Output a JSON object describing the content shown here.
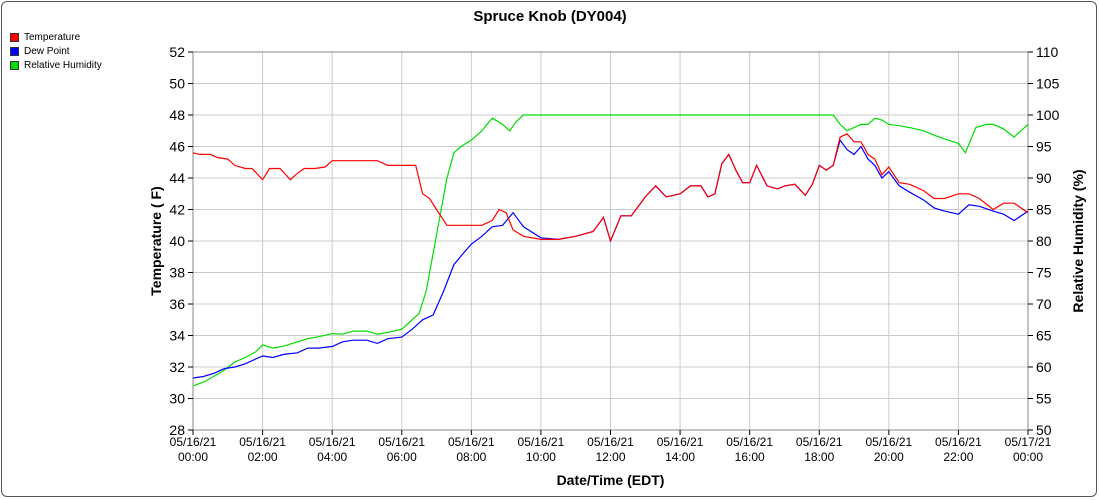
{
  "chart_data": {
    "type": "line",
    "title": "Spruce Knob (DY004)",
    "xlabel": "Date/Time (EDT)",
    "ylabel_left": "Temperature ( F)",
    "ylabel_right": "Relative Humidity (%)",
    "ylim_left": [
      28,
      52
    ],
    "ylim_right": [
      50,
      110
    ],
    "xlim_hours": [
      0,
      24
    ],
    "grid": true,
    "legend_placement": "top-left",
    "x_tick_labels": [
      [
        "05/16/21",
        "00:00"
      ],
      [
        "05/16/21",
        "02:00"
      ],
      [
        "05/16/21",
        "04:00"
      ],
      [
        "05/16/21",
        "06:00"
      ],
      [
        "05/16/21",
        "08:00"
      ],
      [
        "05/16/21",
        "10:00"
      ],
      [
        "05/16/21",
        "12:00"
      ],
      [
        "05/16/21",
        "14:00"
      ],
      [
        "05/16/21",
        "16:00"
      ],
      [
        "05/16/21",
        "18:00"
      ],
      [
        "05/16/21",
        "20:00"
      ],
      [
        "05/16/21",
        "22:00"
      ],
      [
        "05/17/21",
        "00:00"
      ]
    ],
    "y_left_ticks": [
      28,
      30,
      32,
      34,
      36,
      38,
      40,
      42,
      44,
      46,
      48,
      50,
      52
    ],
    "y_right_ticks": [
      50,
      55,
      60,
      65,
      70,
      75,
      80,
      85,
      90,
      95,
      100,
      105,
      110
    ],
    "series": [
      {
        "name": "Temperature",
        "color": "#ff0000",
        "axis": "left",
        "x": [
          0,
          0.2,
          0.5,
          0.7,
          1.0,
          1.2,
          1.5,
          1.7,
          2.0,
          2.2,
          2.5,
          2.8,
          3.0,
          3.2,
          3.5,
          3.8,
          4.0,
          4.3,
          4.6,
          5.0,
          5.3,
          5.6,
          6.0,
          6.4,
          6.6,
          6.8,
          7.0,
          7.3,
          7.6,
          8.0,
          8.3,
          8.6,
          8.8,
          9.0,
          9.2,
          9.5,
          10.0,
          10.5,
          11.0,
          11.5,
          11.8,
          12.0,
          12.3,
          12.6,
          13.0,
          13.3,
          13.6,
          14.0,
          14.3,
          14.6,
          14.8,
          15.0,
          15.2,
          15.4,
          15.6,
          15.8,
          16.0,
          16.2,
          16.5,
          16.8,
          17.0,
          17.3,
          17.6,
          17.8,
          18.0,
          18.2,
          18.4,
          18.6,
          18.8,
          19.0,
          19.2,
          19.4,
          19.6,
          19.8,
          20.0,
          20.3,
          20.6,
          21.0,
          21.3,
          21.6,
          22.0,
          22.3,
          22.6,
          23.0,
          23.3,
          23.6,
          24.0
        ],
        "values": [
          45.6,
          45.5,
          45.5,
          45.3,
          45.2,
          44.8,
          44.6,
          44.6,
          43.9,
          44.6,
          44.6,
          43.9,
          44.3,
          44.6,
          44.6,
          44.7,
          45.1,
          45.1,
          45.1,
          45.1,
          45.1,
          44.8,
          44.8,
          44.8,
          43.0,
          42.7,
          42.0,
          41.0,
          41.0,
          41.0,
          41.0,
          41.3,
          42.0,
          41.8,
          40.7,
          40.3,
          40.1,
          40.1,
          40.3,
          40.6,
          41.5,
          40.0,
          41.6,
          41.6,
          42.8,
          43.5,
          42.8,
          43.0,
          43.5,
          43.5,
          42.8,
          43.0,
          44.9,
          45.5,
          44.5,
          43.7,
          43.7,
          44.8,
          43.5,
          43.3,
          43.5,
          43.6,
          42.9,
          43.6,
          44.8,
          44.5,
          44.8,
          46.6,
          46.8,
          46.3,
          46.3,
          45.5,
          45.2,
          44.2,
          44.7,
          43.7,
          43.6,
          43.2,
          42.7,
          42.7,
          43.0,
          43.0,
          42.7,
          42.0,
          42.4,
          42.4,
          41.8
        ]
      },
      {
        "name": "Dew Point",
        "color": "#0000ff",
        "axis": "left",
        "x": [
          0,
          0.3,
          0.6,
          0.9,
          1.2,
          1.5,
          1.8,
          2.0,
          2.3,
          2.6,
          3.0,
          3.3,
          3.6,
          4.0,
          4.3,
          4.6,
          5.0,
          5.3,
          5.6,
          6.0,
          6.3,
          6.6,
          6.9,
          7.2,
          7.5,
          7.8,
          8.0,
          8.3,
          8.6,
          8.9,
          9.2,
          9.5,
          10.0,
          10.5,
          11.0,
          11.5,
          11.8,
          12.0,
          12.3,
          12.6,
          13.0,
          13.3,
          13.6,
          14.0,
          14.3,
          14.6,
          14.8,
          15.0,
          15.2,
          15.4,
          15.6,
          15.8,
          16.0,
          16.2,
          16.5,
          16.8,
          17.0,
          17.3,
          17.6,
          17.8,
          18.0,
          18.2,
          18.4,
          18.6,
          18.8,
          19.0,
          19.2,
          19.4,
          19.6,
          19.8,
          20.0,
          20.3,
          20.6,
          21.0,
          21.3,
          21.6,
          22.0,
          22.3,
          22.6,
          23.0,
          23.3,
          23.6,
          24.0
        ],
        "values": [
          31.3,
          31.4,
          31.6,
          31.9,
          32.0,
          32.2,
          32.5,
          32.7,
          32.6,
          32.8,
          32.9,
          33.2,
          33.2,
          33.3,
          33.6,
          33.7,
          33.7,
          33.5,
          33.8,
          33.9,
          34.4,
          35.0,
          35.3,
          36.8,
          38.5,
          39.3,
          39.8,
          40.3,
          40.9,
          41.0,
          41.8,
          40.9,
          40.2,
          40.1,
          40.3,
          40.6,
          41.5,
          40.0,
          41.6,
          41.6,
          42.8,
          43.5,
          42.8,
          43.0,
          43.5,
          43.5,
          42.8,
          43.0,
          44.9,
          45.5,
          44.5,
          43.7,
          43.7,
          44.8,
          43.5,
          43.3,
          43.5,
          43.6,
          42.9,
          43.6,
          44.8,
          44.5,
          44.8,
          46.4,
          45.8,
          45.5,
          46.0,
          45.2,
          44.8,
          44.0,
          44.4,
          43.5,
          43.1,
          42.6,
          42.1,
          41.9,
          41.7,
          42.3,
          42.2,
          41.9,
          41.7,
          41.3,
          41.9
        ]
      },
      {
        "name": "Relative Humidity",
        "color": "#00dd00",
        "axis": "right",
        "x": [
          0,
          0.3,
          0.6,
          0.9,
          1.2,
          1.5,
          1.8,
          2.0,
          2.3,
          2.6,
          3.0,
          3.3,
          3.6,
          4.0,
          4.3,
          4.6,
          5.0,
          5.3,
          5.6,
          6.0,
          6.3,
          6.5,
          6.7,
          6.9,
          7.1,
          7.3,
          7.5,
          7.7,
          8.0,
          8.3,
          8.6,
          8.9,
          9.1,
          9.3,
          9.5,
          10.0,
          12.0,
          14.0,
          16.0,
          18.0,
          18.4,
          18.6,
          18.8,
          19.0,
          19.2,
          19.4,
          19.6,
          19.8,
          20.0,
          20.3,
          20.6,
          21.0,
          21.3,
          21.6,
          22.0,
          22.2,
          22.5,
          22.8,
          23.0,
          23.3,
          23.6,
          24.0
        ],
        "values": [
          57.0,
          57.6,
          58.5,
          59.5,
          60.8,
          61.5,
          62.4,
          63.5,
          63.0,
          63.3,
          64.0,
          64.5,
          64.8,
          65.3,
          65.2,
          65.7,
          65.7,
          65.2,
          65.5,
          66.0,
          67.5,
          68.5,
          72.0,
          78.0,
          84.0,
          90.0,
          94.0,
          95.0,
          96.0,
          97.5,
          99.5,
          98.5,
          97.5,
          99.0,
          100.0,
          100.0,
          100.0,
          100.0,
          100.0,
          100.0,
          100.0,
          98.5,
          97.5,
          98.0,
          98.5,
          98.5,
          99.5,
          99.2,
          98.5,
          98.3,
          98.0,
          97.5,
          96.8,
          96.2,
          95.5,
          94.0,
          98.0,
          98.5,
          98.5,
          97.8,
          96.5,
          98.5
        ]
      }
    ]
  }
}
